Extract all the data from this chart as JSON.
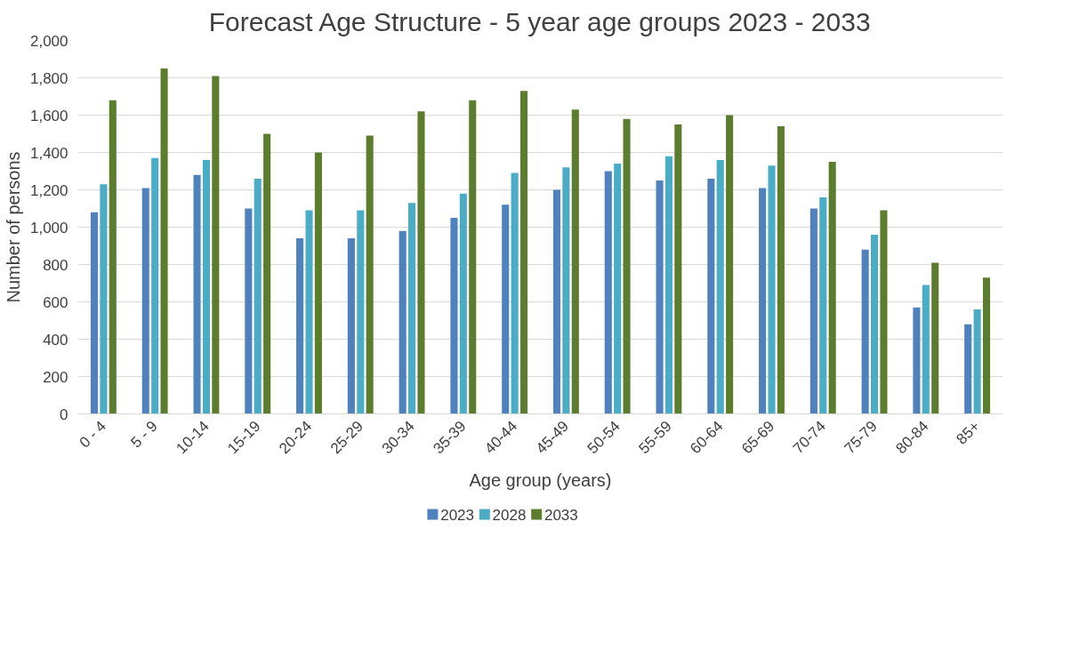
{
  "chart_data": {
    "type": "bar",
    "title": "Forecast Age Structure - 5 year age groups 2023 - 2033",
    "xlabel": "Age group (years)",
    "ylabel": "Number of persons",
    "categories": [
      "0 - 4",
      "5 - 9",
      "10-14",
      "15-19",
      "20-24",
      "25-29",
      "30-34",
      "35-39",
      "40-44",
      "45-49",
      "50-54",
      "55-59",
      "60-64",
      "65-69",
      "70-74",
      "75-79",
      "80-84",
      "85+"
    ],
    "series": [
      {
        "name": "2023",
        "color": "#4f81bd",
        "values": [
          1080,
          1210,
          1280,
          1100,
          940,
          940,
          980,
          1050,
          1120,
          1200,
          1300,
          1250,
          1260,
          1210,
          1100,
          880,
          570,
          480
        ]
      },
      {
        "name": "2028",
        "color": "#4bacc6",
        "values": [
          1230,
          1370,
          1360,
          1260,
          1090,
          1090,
          1130,
          1180,
          1290,
          1320,
          1340,
          1380,
          1360,
          1330,
          1160,
          960,
          690,
          560
        ]
      },
      {
        "name": "2033",
        "color": "#5d7d2e",
        "values": [
          1680,
          1850,
          1810,
          1500,
          1400,
          1490,
          1620,
          1680,
          1730,
          1630,
          1580,
          1550,
          1600,
          1540,
          1350,
          1090,
          810,
          730
        ]
      }
    ],
    "ylim": [
      0,
      2000
    ],
    "yticks": [
      {
        "value": 0,
        "label": "0"
      },
      {
        "value": 200,
        "label": "200"
      },
      {
        "value": 400,
        "label": "400"
      },
      {
        "value": 600,
        "label": "600"
      },
      {
        "value": 800,
        "label": "800"
      },
      {
        "value": 1000,
        "label": "1,000"
      },
      {
        "value": 1200,
        "label": "1,200"
      },
      {
        "value": 1400,
        "label": "1,400"
      },
      {
        "value": 1600,
        "label": "1,600"
      },
      {
        "value": 1800,
        "label": "1,800"
      },
      {
        "value": 2000,
        "label": "2,000"
      }
    ],
    "grid": "y",
    "legend": "bottom"
  }
}
